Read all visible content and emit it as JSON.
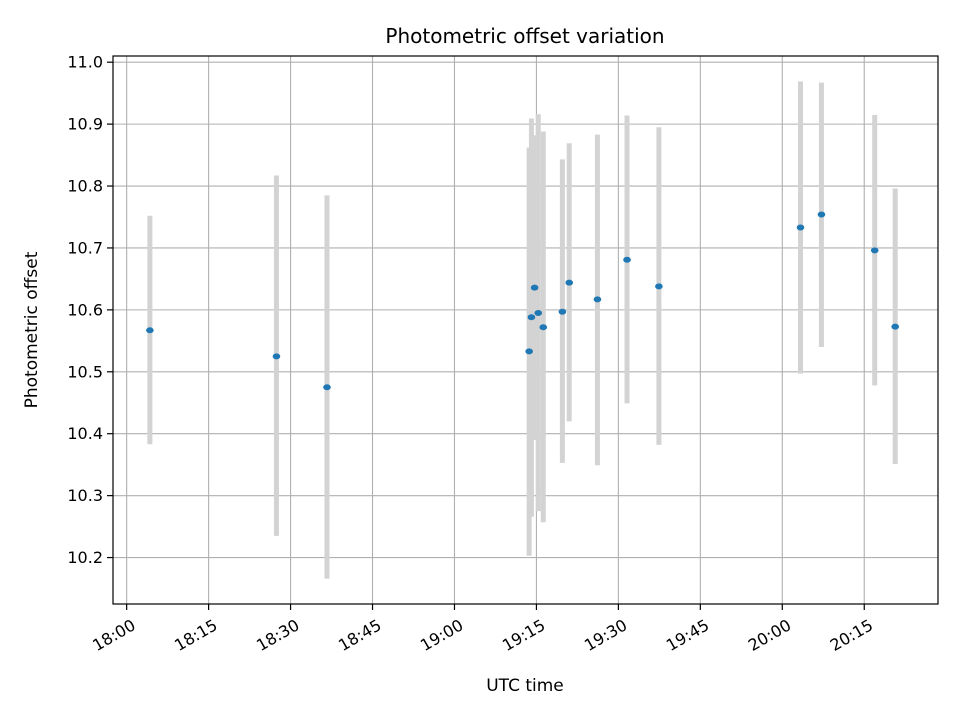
{
  "chart_data": {
    "type": "scatter",
    "title": "Photometric offset variation",
    "xlabel": "UTC time",
    "ylabel": "Photometric offset",
    "grid": true,
    "x_axis": {
      "unit": "time-of-day",
      "range": [
        "17:57:30",
        "20:28:30"
      ],
      "ticks": [
        "18:00",
        "18:15",
        "18:30",
        "18:45",
        "19:00",
        "19:15",
        "19:30",
        "19:45",
        "20:00",
        "20:15"
      ],
      "tick_rotation": 30
    },
    "y_axis": {
      "range": [
        10.125,
        11.01
      ],
      "ticks": [
        10.2,
        10.3,
        10.4,
        10.5,
        10.6,
        10.7,
        10.8,
        10.9,
        11.0
      ],
      "tick_labels": [
        "10.2",
        "10.3",
        "10.4",
        "10.5",
        "10.6",
        "10.7",
        "10.8",
        "10.9",
        "11.0"
      ]
    },
    "colors": {
      "points": "#1f77b4",
      "errorbars": "#d3d3d3",
      "grid": "#b0b0b0"
    },
    "points": [
      {
        "x": "18:04:15",
        "y": 10.567,
        "err_low": 10.383,
        "err_high": 10.752
      },
      {
        "x": "18:27:25",
        "y": 10.525,
        "err_low": 10.235,
        "err_high": 10.817
      },
      {
        "x": "18:36:40",
        "y": 10.475,
        "err_low": 10.166,
        "err_high": 10.785
      },
      {
        "x": "19:13:40",
        "y": 10.533,
        "err_low": 10.203,
        "err_high": 10.862
      },
      {
        "x": "19:14:05",
        "y": 10.588,
        "err_low": 10.266,
        "err_high": 10.909
      },
      {
        "x": "19:14:40",
        "y": 10.636,
        "err_low": 10.39,
        "err_high": 10.882
      },
      {
        "x": "19:15:20",
        "y": 10.595,
        "err_low": 10.275,
        "err_high": 10.916
      },
      {
        "x": "19:16:15",
        "y": 10.572,
        "err_low": 10.257,
        "err_high": 10.888
      },
      {
        "x": "19:19:45",
        "y": 10.597,
        "err_low": 10.353,
        "err_high": 10.843
      },
      {
        "x": "19:21:00",
        "y": 10.644,
        "err_low": 10.42,
        "err_high": 10.869
      },
      {
        "x": "19:26:10",
        "y": 10.617,
        "err_low": 10.349,
        "err_high": 10.883
      },
      {
        "x": "19:31:35",
        "y": 10.681,
        "err_low": 10.449,
        "err_high": 10.914
      },
      {
        "x": "19:37:25",
        "y": 10.638,
        "err_low": 10.382,
        "err_high": 10.895
      },
      {
        "x": "20:03:20",
        "y": 10.733,
        "err_low": 10.497,
        "err_high": 10.969
      },
      {
        "x": "20:07:10",
        "y": 10.754,
        "err_low": 10.54,
        "err_high": 10.967
      },
      {
        "x": "20:16:55",
        "y": 10.696,
        "err_low": 10.478,
        "err_high": 10.915
      },
      {
        "x": "20:20:40",
        "y": 10.573,
        "err_low": 10.351,
        "err_high": 10.796
      }
    ]
  }
}
